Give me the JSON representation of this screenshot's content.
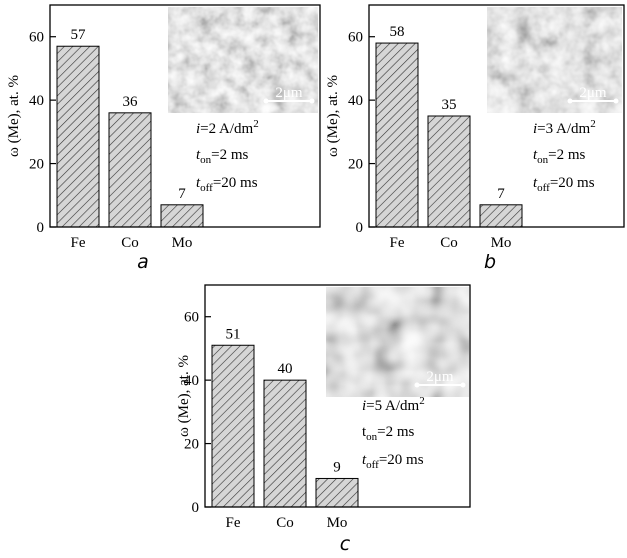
{
  "chart_data": [
    {
      "type": "bar",
      "panel_label": "a",
      "y_label": "ω (Me), at. %",
      "categories": [
        "Fe",
        "Co",
        "Mo"
      ],
      "values": [
        57,
        36,
        7
      ],
      "color": "#c8c8c8",
      "ylim": [
        0,
        70
      ],
      "yticks": [
        0,
        20,
        40,
        60
      ],
      "current_density": {
        "symbol": "i",
        "text": "=2 A/dm",
        "sup": "2"
      },
      "t_on": {
        "symbol": "t",
        "sub": "on",
        "text": "=2 ms"
      },
      "t_off": {
        "symbol": "t",
        "sub": "off",
        "text": "=20 ms"
      },
      "scale_bar": "2μm"
    },
    {
      "type": "bar",
      "panel_label": "b",
      "y_label": "ω (Me), at. %",
      "categories": [
        "Fe",
        "Co",
        "Mo"
      ],
      "values": [
        58,
        35,
        7
      ],
      "color": "#c8c8c8",
      "ylim": [
        0,
        70
      ],
      "yticks": [
        0,
        20,
        40,
        60
      ],
      "current_density": {
        "symbol": "i",
        "text": "=3 A/dm",
        "sup": "2"
      },
      "t_on": {
        "symbol": "t",
        "sub": "on",
        "text": "=2 ms"
      },
      "t_off": {
        "symbol": "t",
        "sub": "off",
        "text": "=20 ms"
      },
      "scale_bar": "2μm"
    },
    {
      "type": "bar",
      "panel_label": "c",
      "y_label": "ω (Me), at. %",
      "categories": [
        "Fe",
        "Co",
        "Mo"
      ],
      "values": [
        51,
        40,
        9
      ],
      "color": "#c8c8c8",
      "ylim": [
        0,
        70
      ],
      "yticks": [
        0,
        20,
        40,
        60
      ],
      "current_density": {
        "symbol": "i",
        "text": "=5 A/dm",
        "sup": "2"
      },
      "t_on": {
        "symbol": "t",
        "sub": "on",
        "text": "=2 ms"
      },
      "t_off": {
        "symbol": "t",
        "sub": "off",
        "text": "=20 ms"
      },
      "scale_bar": "2μm"
    }
  ]
}
